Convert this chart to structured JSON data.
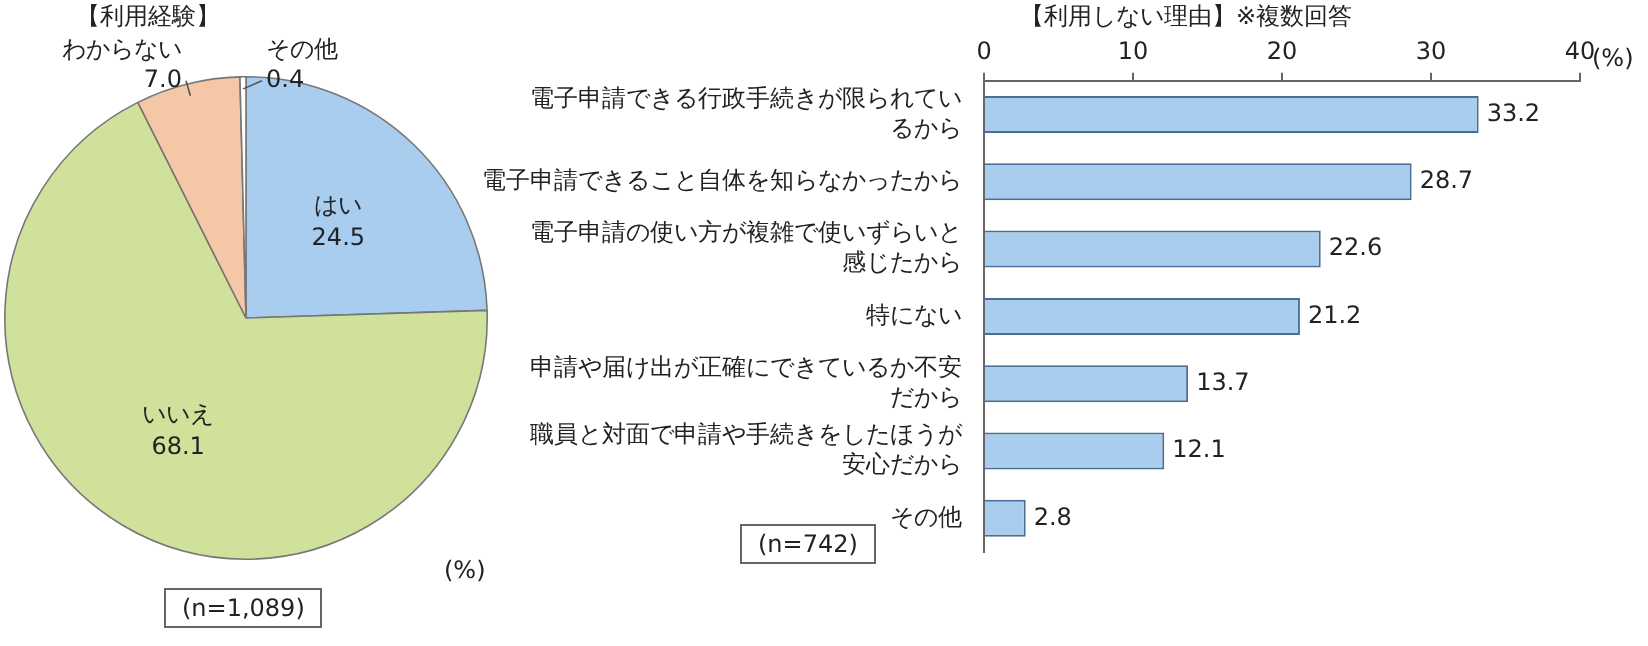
{
  "chart_data": [
    {
      "type": "pie",
      "title": "【利用経験】",
      "categories": [
        "はい",
        "いいえ",
        "わからない",
        "その他"
      ],
      "values": [
        24.5,
        68.1,
        7.0,
        0.4
      ],
      "colors": [
        "#a8cdee",
        "#d0e19b",
        "#f4c7a6",
        "#ffffff"
      ],
      "value_labels": [
        "24.5",
        "68.1",
        "7.0",
        "0.4"
      ],
      "legend": false,
      "annotations": [
        "(%)",
        "(n=1,089)"
      ]
    },
    {
      "type": "bar",
      "orientation": "horizontal",
      "title": "【利用しない理由】※複数回答",
      "categories": [
        "電子申請できる行政手続きが限られているから",
        "電子申請できること自体を知らなかったから",
        "電子申請の使い方が複雑で使いずらいと感じたから",
        "特にない",
        "申請や届け出が正確にできているか不安だから",
        "職員と対面で申請や手続きをしたほうが安心だから",
        "その他"
      ],
      "values": [
        33.2,
        28.7,
        22.6,
        21.2,
        13.7,
        12.1,
        2.8
      ],
      "color": "#a8cdee",
      "xlim": [
        0,
        40
      ],
      "xticks": [
        0,
        10,
        20,
        30,
        40
      ],
      "data_labels": true,
      "legend": false,
      "annotations": [
        "(%)",
        "(n=742)"
      ]
    }
  ]
}
